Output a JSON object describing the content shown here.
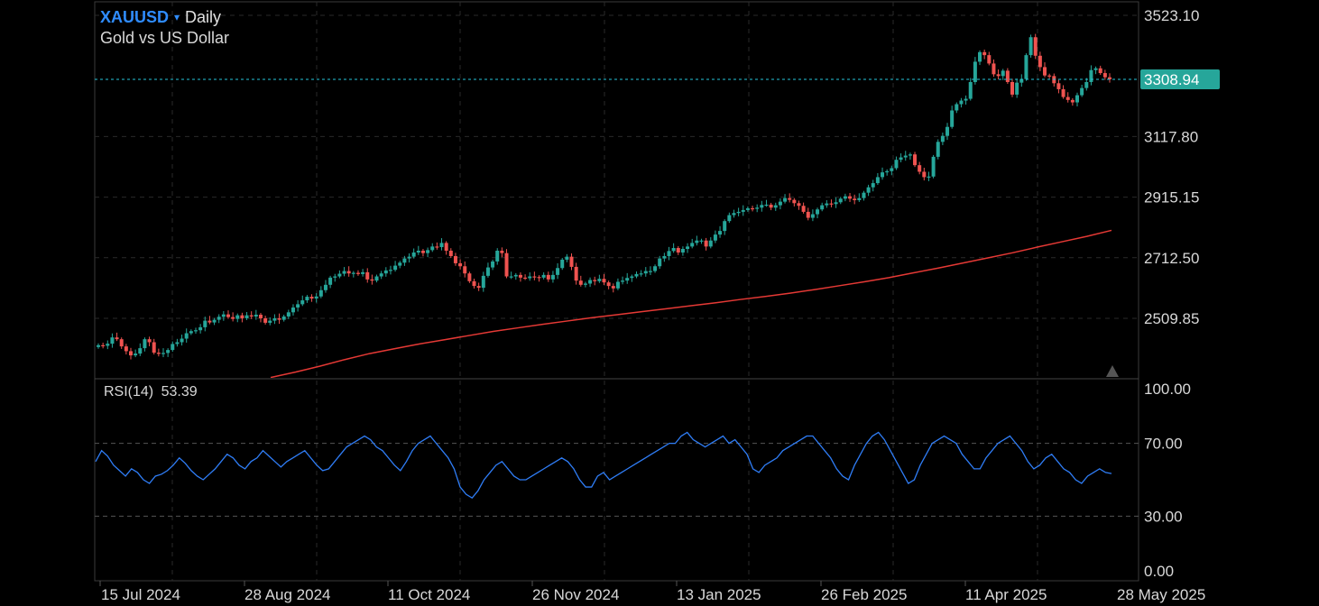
{
  "header": {
    "symbol": "XAUUSD",
    "caret": "▾",
    "timeframe": "Daily",
    "description": "Gold vs US Dollar"
  },
  "colors": {
    "background": "#000000",
    "up_candle": "#26a69a",
    "down_candle": "#ef5350",
    "moving_average": "#e53935",
    "rsi_line": "#2f7df6",
    "last_price_badge": "#26a69a",
    "symbol": "#2f8cff"
  },
  "price_axis": {
    "ticks": [
      "3523.10",
      "3117.80",
      "2915.15",
      "2712.50",
      "2509.85"
    ],
    "last_price": "3308.94"
  },
  "rsi": {
    "label": "RSI(14)",
    "value": "53.39",
    "ticks": [
      "100.00",
      "70.00",
      "30.00",
      "0.00"
    ]
  },
  "date_axis": [
    "15 Jul 2024",
    "28 Aug 2024",
    "11 Oct 2024",
    "26 Nov 2024",
    "13 Jan 2025",
    "26 Feb 2025",
    "11 Apr 2025",
    "28 May 2025"
  ],
  "chart_data": {
    "type": "line",
    "title": "XAUUSD Daily",
    "price_series_type": "candlestick",
    "x_range": [
      "2024-07-01",
      "2025-05-28"
    ],
    "y_range": [
      2350,
      3575
    ],
    "price_series": [
      {
        "name": "XAUUSD",
        "values": [
          2420,
          2418,
          2425,
          2446,
          2440,
          2416,
          2400,
          2386,
          2392,
          2410,
          2440,
          2430,
          2395,
          2391,
          2394,
          2404,
          2424,
          2430,
          2442,
          2460,
          2467,
          2470,
          2480,
          2502,
          2496,
          2505,
          2515,
          2523,
          2514,
          2508,
          2520,
          2510,
          2520,
          2516,
          2522,
          2510,
          2495,
          2502,
          2510,
          2505,
          2516,
          2530,
          2546,
          2557,
          2570,
          2582,
          2576,
          2583,
          2604,
          2622,
          2646,
          2650,
          2659,
          2668,
          2660,
          2662,
          2658,
          2664,
          2640,
          2636,
          2650,
          2660,
          2670,
          2672,
          2686,
          2696,
          2710,
          2716,
          2730,
          2736,
          2728,
          2738,
          2750,
          2748,
          2762,
          2736,
          2718,
          2694,
          2684,
          2660,
          2634,
          2618,
          2612,
          2652,
          2680,
          2700,
          2736,
          2728,
          2650,
          2650,
          2655,
          2646,
          2644,
          2650,
          2648,
          2646,
          2655,
          2640,
          2655,
          2678,
          2706,
          2716,
          2682,
          2636,
          2622,
          2626,
          2638,
          2634,
          2642,
          2630,
          2618,
          2610,
          2632,
          2636,
          2645,
          2650,
          2658,
          2660,
          2668,
          2668,
          2684,
          2710,
          2718,
          2735,
          2745,
          2730,
          2742,
          2750,
          2762,
          2770,
          2770,
          2750,
          2770,
          2790,
          2802,
          2835,
          2855,
          2862,
          2866,
          2872,
          2878,
          2876,
          2880,
          2889,
          2890,
          2880,
          2888,
          2900,
          2912,
          2906,
          2895,
          2886,
          2866,
          2846,
          2858,
          2874,
          2888,
          2894,
          2892,
          2898,
          2910,
          2918,
          2910,
          2905,
          2912,
          2930,
          2948,
          2962,
          2982,
          2998,
          3002,
          3012,
          3040,
          3048,
          3054,
          3058,
          3022,
          3000,
          2982,
          2984,
          3050,
          3100,
          3120,
          3150,
          3205,
          3226,
          3238,
          3244,
          3300,
          3368,
          3400,
          3390,
          3362,
          3326,
          3320,
          3338,
          3300,
          3258,
          3298,
          3310,
          3390,
          3450,
          3388,
          3350,
          3322,
          3320,
          3296,
          3276,
          3250,
          3240,
          3232,
          3256,
          3280,
          3300,
          3340,
          3346,
          3330,
          3316,
          3308.94
        ]
      },
      {
        "name": "Moving average",
        "values": [
          2312,
          2330,
          2350,
          2372,
          2392,
          2408,
          2424,
          2438,
          2452,
          2466,
          2478,
          2490,
          2501,
          2512,
          2522,
          2532,
          2542,
          2552,
          2562,
          2573,
          2583,
          2594,
          2606,
          2619,
          2632,
          2646,
          2662,
          2678,
          2695,
          2712,
          2729,
          2748,
          2766,
          2784,
          2804
        ]
      }
    ],
    "rsi_series": {
      "name": "RSI(14)",
      "ylim": [
        0,
        100
      ],
      "levels": [
        70,
        30
      ],
      "values": [
        60,
        66,
        63,
        58,
        55,
        52,
        56,
        54,
        50,
        48,
        52,
        53,
        55,
        58,
        62,
        59,
        55,
        52,
        50,
        53,
        56,
        60,
        64,
        62,
        58,
        56,
        60,
        62,
        66,
        63,
        60,
        57,
        60,
        62,
        64,
        66,
        62,
        58,
        55,
        56,
        60,
        64,
        68,
        70,
        72,
        74,
        72,
        68,
        66,
        62,
        58,
        55,
        60,
        66,
        70,
        72,
        74,
        70,
        66,
        62,
        56,
        46,
        42,
        40,
        44,
        50,
        54,
        58,
        60,
        56,
        52,
        50,
        50,
        52,
        54,
        56,
        58,
        60,
        62,
        60,
        56,
        50,
        46,
        46,
        52,
        54,
        50,
        52,
        54,
        56,
        58,
        60,
        62,
        64,
        66,
        68,
        70,
        70,
        74,
        76,
        72,
        70,
        68,
        70,
        72,
        74,
        70,
        72,
        68,
        64,
        56,
        54,
        58,
        60,
        62,
        66,
        68,
        70,
        72,
        74,
        74,
        70,
        66,
        62,
        56,
        52,
        50,
        58,
        64,
        70,
        74,
        76,
        72,
        66,
        60,
        54,
        48,
        50,
        58,
        64,
        70,
        72,
        74,
        72,
        70,
        64,
        60,
        56,
        56,
        62,
        66,
        70,
        72,
        74,
        70,
        66,
        60,
        56,
        58,
        62,
        64,
        60,
        56,
        54,
        50,
        48,
        52,
        54,
        56,
        54,
        53.39
      ]
    }
  }
}
